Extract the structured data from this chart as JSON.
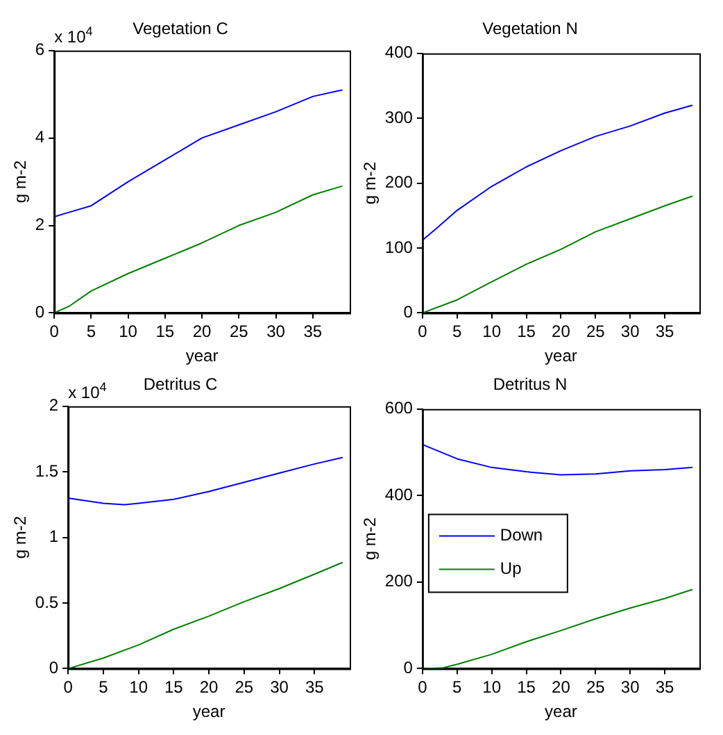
{
  "chart_data": [
    {
      "type": "line",
      "title": "Vegetation C",
      "xlabel": "year",
      "ylabel": "g m-2",
      "annotations": [
        "x 10$^{4}$"
      ],
      "xlim": [
        0,
        40
      ],
      "xticks": [
        0,
        5,
        10,
        15,
        20,
        25,
        30,
        35
      ],
      "ylim": [
        0,
        6
      ],
      "yticks": [
        0,
        2,
        4,
        6
      ],
      "legend": false,
      "grid": false,
      "series": [
        {
          "color": "#0000ff",
          "x": [
            0,
            2,
            5,
            10,
            15,
            20,
            25,
            30,
            35,
            39
          ],
          "values": [
            2.2,
            2.3,
            2.45,
            3.0,
            3.5,
            4.0,
            4.3,
            4.6,
            4.95,
            5.1
          ]
        },
        {
          "color": "#008000",
          "x": [
            0,
            2,
            5,
            10,
            15,
            20,
            25,
            30,
            35,
            39
          ],
          "values": [
            0,
            0.15,
            0.5,
            0.9,
            1.25,
            1.6,
            2.0,
            2.3,
            2.7,
            2.9
          ]
        }
      ]
    },
    {
      "type": "line",
      "title": "Vegetation N",
      "xlabel": "year",
      "ylabel": "g m-2",
      "xlim": [
        0,
        40
      ],
      "xticks": [
        0,
        5,
        10,
        15,
        20,
        25,
        30,
        35
      ],
      "ylim": [
        0,
        400
      ],
      "yticks": [
        0,
        100,
        200,
        300,
        400
      ],
      "legend": false,
      "grid": false,
      "series": [
        {
          "color": "#0000ff",
          "x": [
            0,
            2,
            5,
            10,
            15,
            20,
            25,
            30,
            35,
            39
          ],
          "values": [
            112,
            130,
            158,
            195,
            225,
            250,
            272,
            288,
            308,
            320
          ]
        },
        {
          "color": "#008000",
          "x": [
            0,
            5,
            10,
            15,
            20,
            25,
            30,
            35,
            39
          ],
          "values": [
            0,
            20,
            48,
            75,
            98,
            125,
            145,
            165,
            180
          ]
        }
      ]
    },
    {
      "type": "line",
      "title": "Detritus C",
      "xlabel": "year",
      "ylabel": "g m-2",
      "annotations": [
        "x 10$^{4}$"
      ],
      "xlim": [
        0,
        40
      ],
      "xticks": [
        0,
        5,
        10,
        15,
        20,
        25,
        30,
        35
      ],
      "ylim": [
        0,
        2
      ],
      "yticks": [
        0,
        0.5,
        1,
        1.5,
        2
      ],
      "legend": false,
      "grid": false,
      "series": [
        {
          "color": "#0000ff",
          "x": [
            0,
            5,
            8,
            10,
            15,
            20,
            25,
            30,
            35,
            39
          ],
          "values": [
            1.3,
            1.26,
            1.25,
            1.26,
            1.29,
            1.35,
            1.42,
            1.49,
            1.56,
            1.61
          ]
        },
        {
          "color": "#008000",
          "x": [
            0,
            5,
            10,
            15,
            20,
            25,
            30,
            35,
            39
          ],
          "values": [
            0,
            0.08,
            0.18,
            0.3,
            0.4,
            0.51,
            0.61,
            0.72,
            0.81
          ]
        }
      ]
    },
    {
      "type": "line",
      "title": "Detritus N",
      "xlabel": "year",
      "ylabel": "g m-2",
      "xlim": [
        0,
        40
      ],
      "xticks": [
        0,
        5,
        10,
        15,
        20,
        25,
        30,
        35
      ],
      "ylim": [
        0,
        600
      ],
      "yticks": [
        0,
        200,
        400,
        600
      ],
      "legend": "left",
      "grid": false,
      "series": [
        {
          "name": "Down",
          "color": "#0000ff",
          "x": [
            0,
            5,
            10,
            15,
            20,
            25,
            30,
            35,
            39
          ],
          "values": [
            518,
            485,
            465,
            455,
            448,
            450,
            457,
            460,
            465
          ]
        },
        {
          "name": "Up",
          "color": "#008000",
          "x": [
            0,
            3,
            5,
            10,
            15,
            20,
            25,
            30,
            35,
            39
          ],
          "values": [
            0,
            2,
            10,
            33,
            62,
            88,
            115,
            140,
            162,
            183
          ]
        }
      ]
    }
  ]
}
